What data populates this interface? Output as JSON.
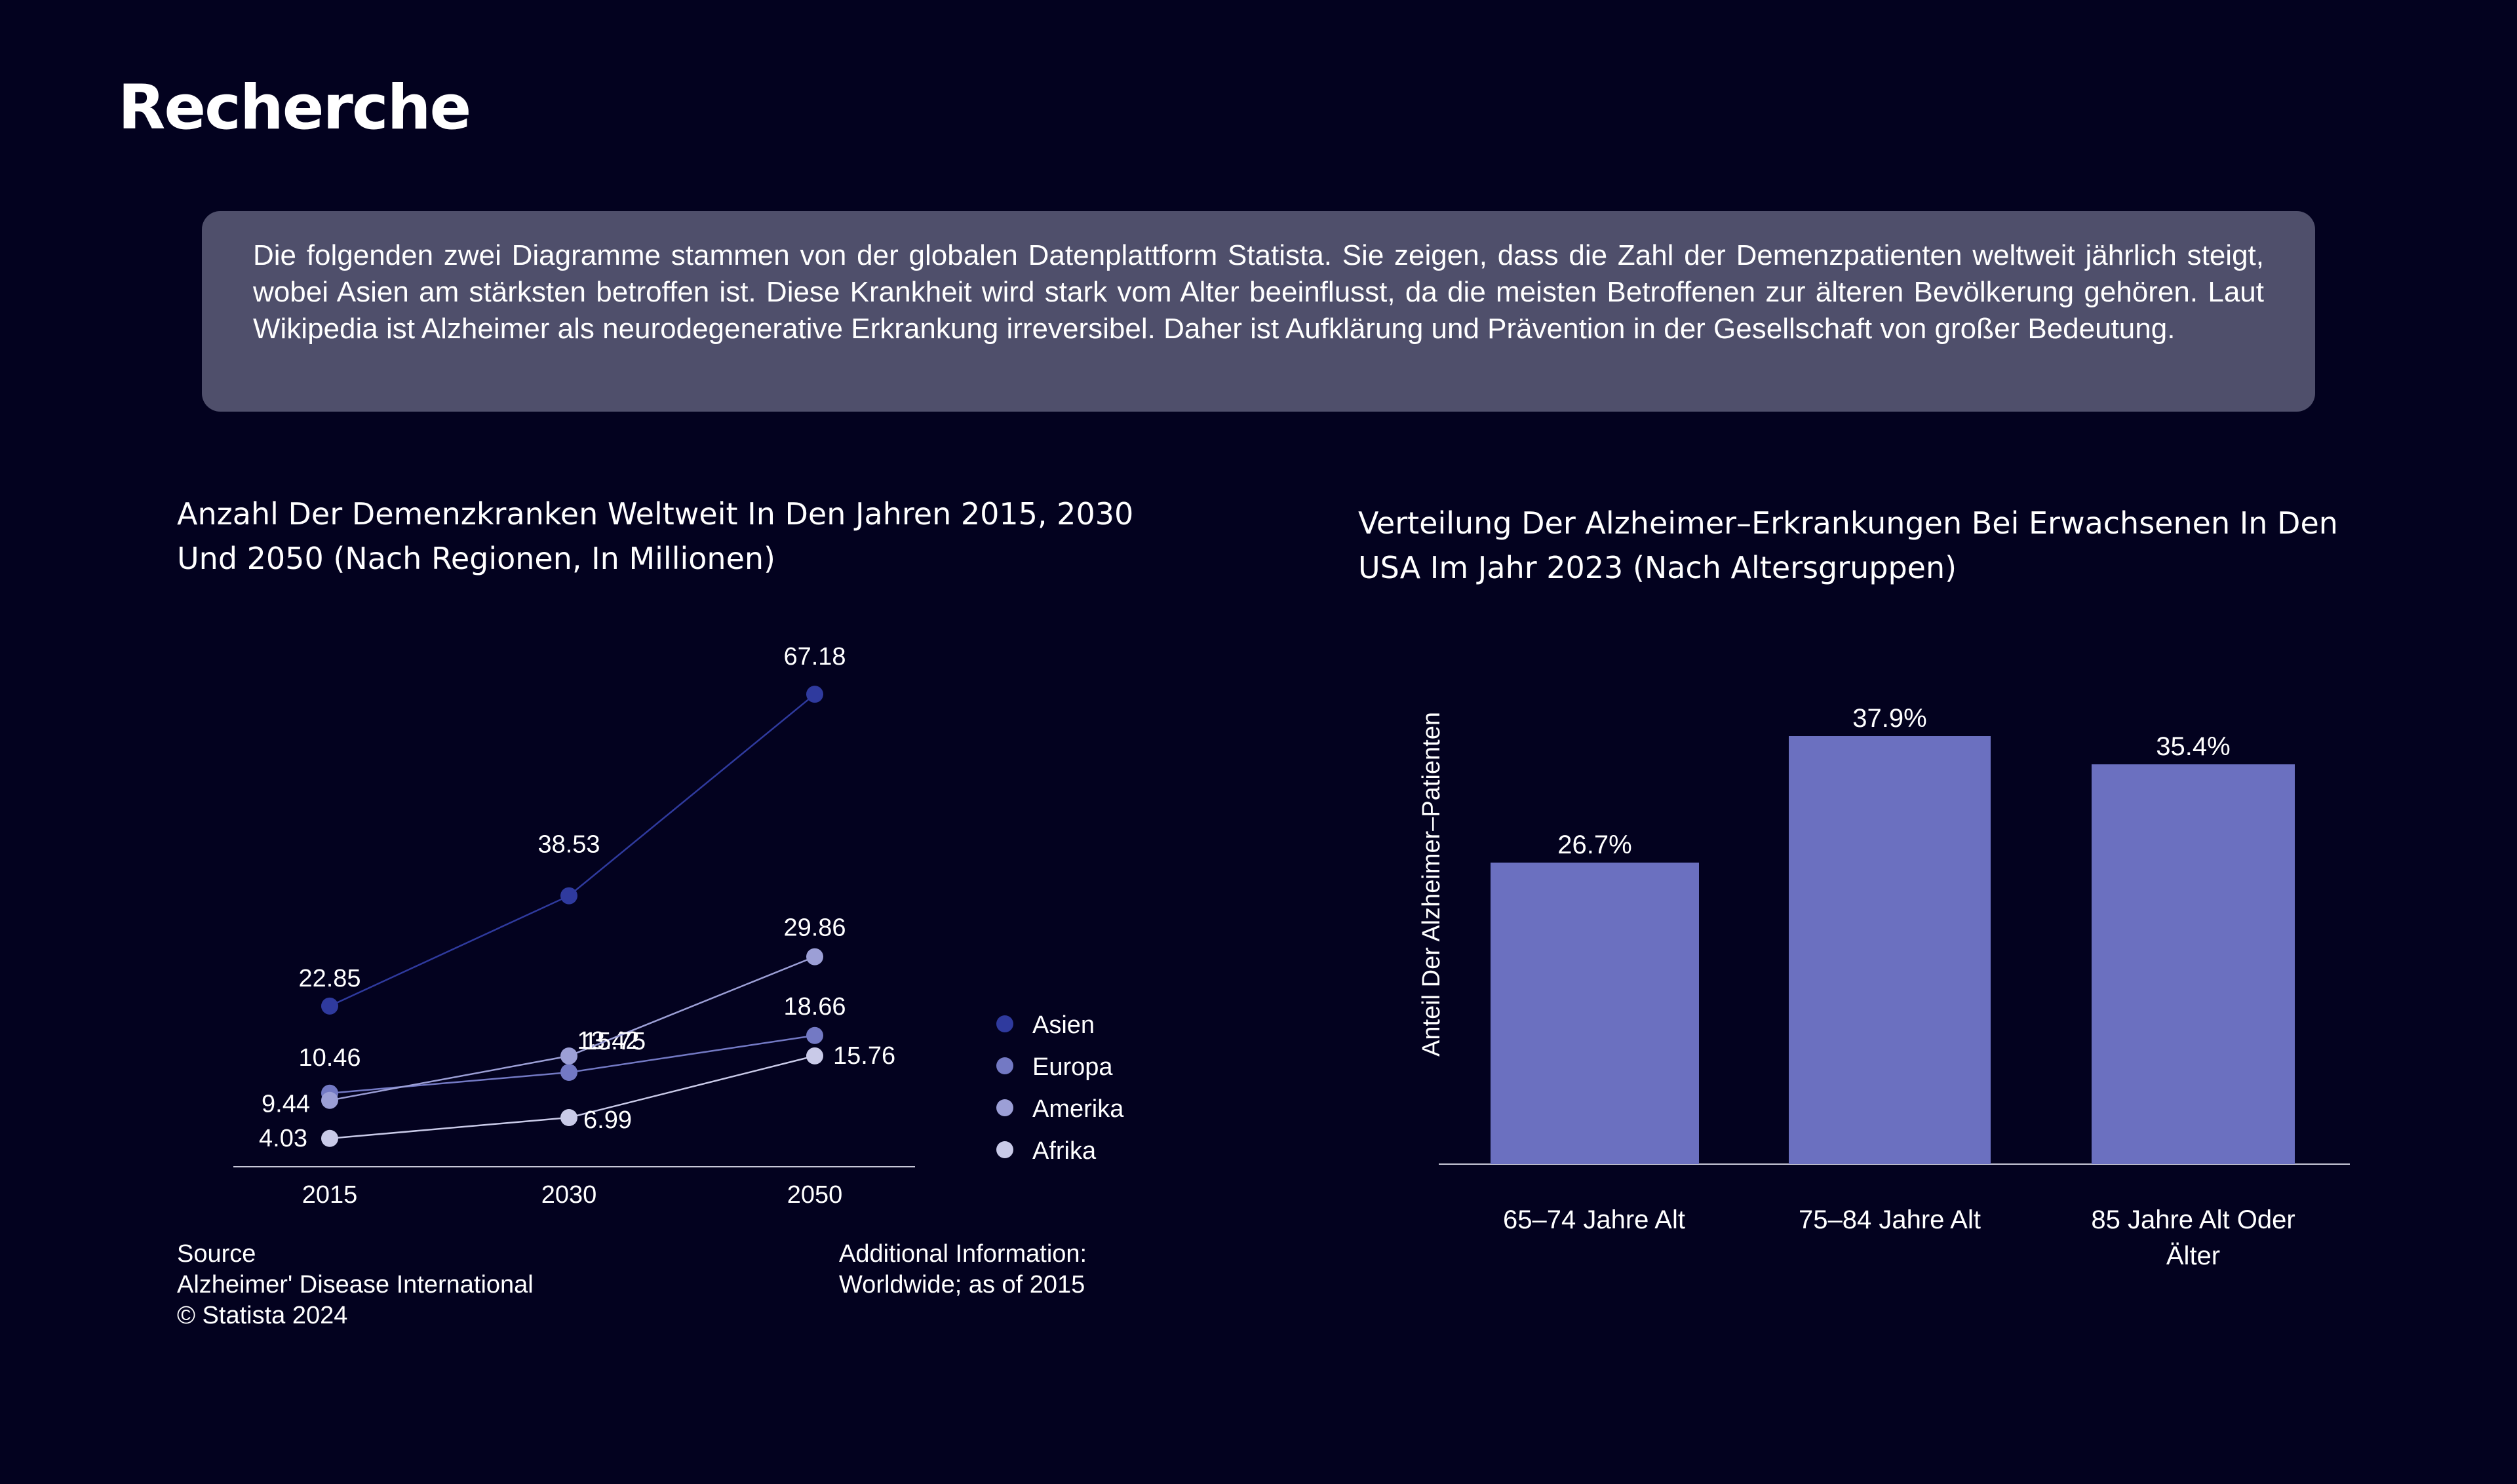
{
  "page": {
    "title": "Recherche",
    "intro": "Die folgenden zwei Diagramme stammen von der globalen Datenplattform Statista. Sie zeigen, dass die Zahl der Demenzpatienten weltweit jährlich steigt, wobei Asien am stärksten betroffen ist. Diese Krankheit wird stark vom Alter beeinflusst, da die meisten Betroffenen zur älteren Bevölkerung gehören. Laut Wikipedia ist Alzheimer als neurodegenerative Erkrankung irreversibel. Daher ist Aufklärung und Prävention in der Gesellschaft von großer Bedeutung."
  },
  "colors": {
    "background": "#03021f",
    "box": "#4f4f6b",
    "bar": "#6b70c0",
    "asien": "#2f3a9e",
    "europa": "#7379c4",
    "amerika": "#9c9fd6",
    "afrika": "#c9cae8"
  },
  "footer": {
    "source_lines": [
      "Source",
      "Alzheimer' Disease International",
      "© Statista 2024"
    ],
    "additional_lines": [
      "Additional Information:",
      "Worldwide; as of 2015"
    ]
  },
  "chart_data": [
    {
      "type": "line",
      "title": "Anzahl Der Demenzkranken Weltweit In Den Jahren 2015, 2030 Und 2050 (Nach Regionen, In Millionen)",
      "x": [
        "2015",
        "2030",
        "2050"
      ],
      "legend_position": "right",
      "grid": false,
      "series": [
        {
          "name": "Asien",
          "values": [
            22.85,
            38.53,
            67.18
          ],
          "labels": [
            "22.85",
            "38.53",
            "67.18"
          ],
          "color": "#2f3a9e"
        },
        {
          "name": "Europa",
          "values": [
            10.46,
            13.42,
            18.66
          ],
          "labels": [
            "10.46",
            "13.42",
            "18.66"
          ],
          "color": "#7379c4"
        },
        {
          "name": "Amerika",
          "values": [
            9.44,
            15.75,
            29.86
          ],
          "labels": [
            "9.44",
            "15.75",
            "29.86"
          ],
          "color": "#9c9fd6"
        },
        {
          "name": "Afrika",
          "values": [
            4.03,
            6.99,
            15.76
          ],
          "labels": [
            "4.03",
            "6.99",
            "15.76"
          ],
          "color": "#c9cae8"
        }
      ]
    },
    {
      "type": "bar",
      "title": "Verteilung Der Alzheimer–Erkrankungen Bei Erwachsenen In Den USA Im Jahr 2023 (Nach Altersgruppen)",
      "ylabel": "Anteil Der Alzheimer–Patienten",
      "categories": [
        "65–74 Jahre Alt",
        "75–84 Jahre Alt",
        "85 Jahre Alt Oder Älter"
      ],
      "values": [
        26.7,
        37.9,
        35.4
      ],
      "value_labels": [
        "26.7%",
        "37.9%",
        "35.4%"
      ],
      "grid": false
    }
  ]
}
